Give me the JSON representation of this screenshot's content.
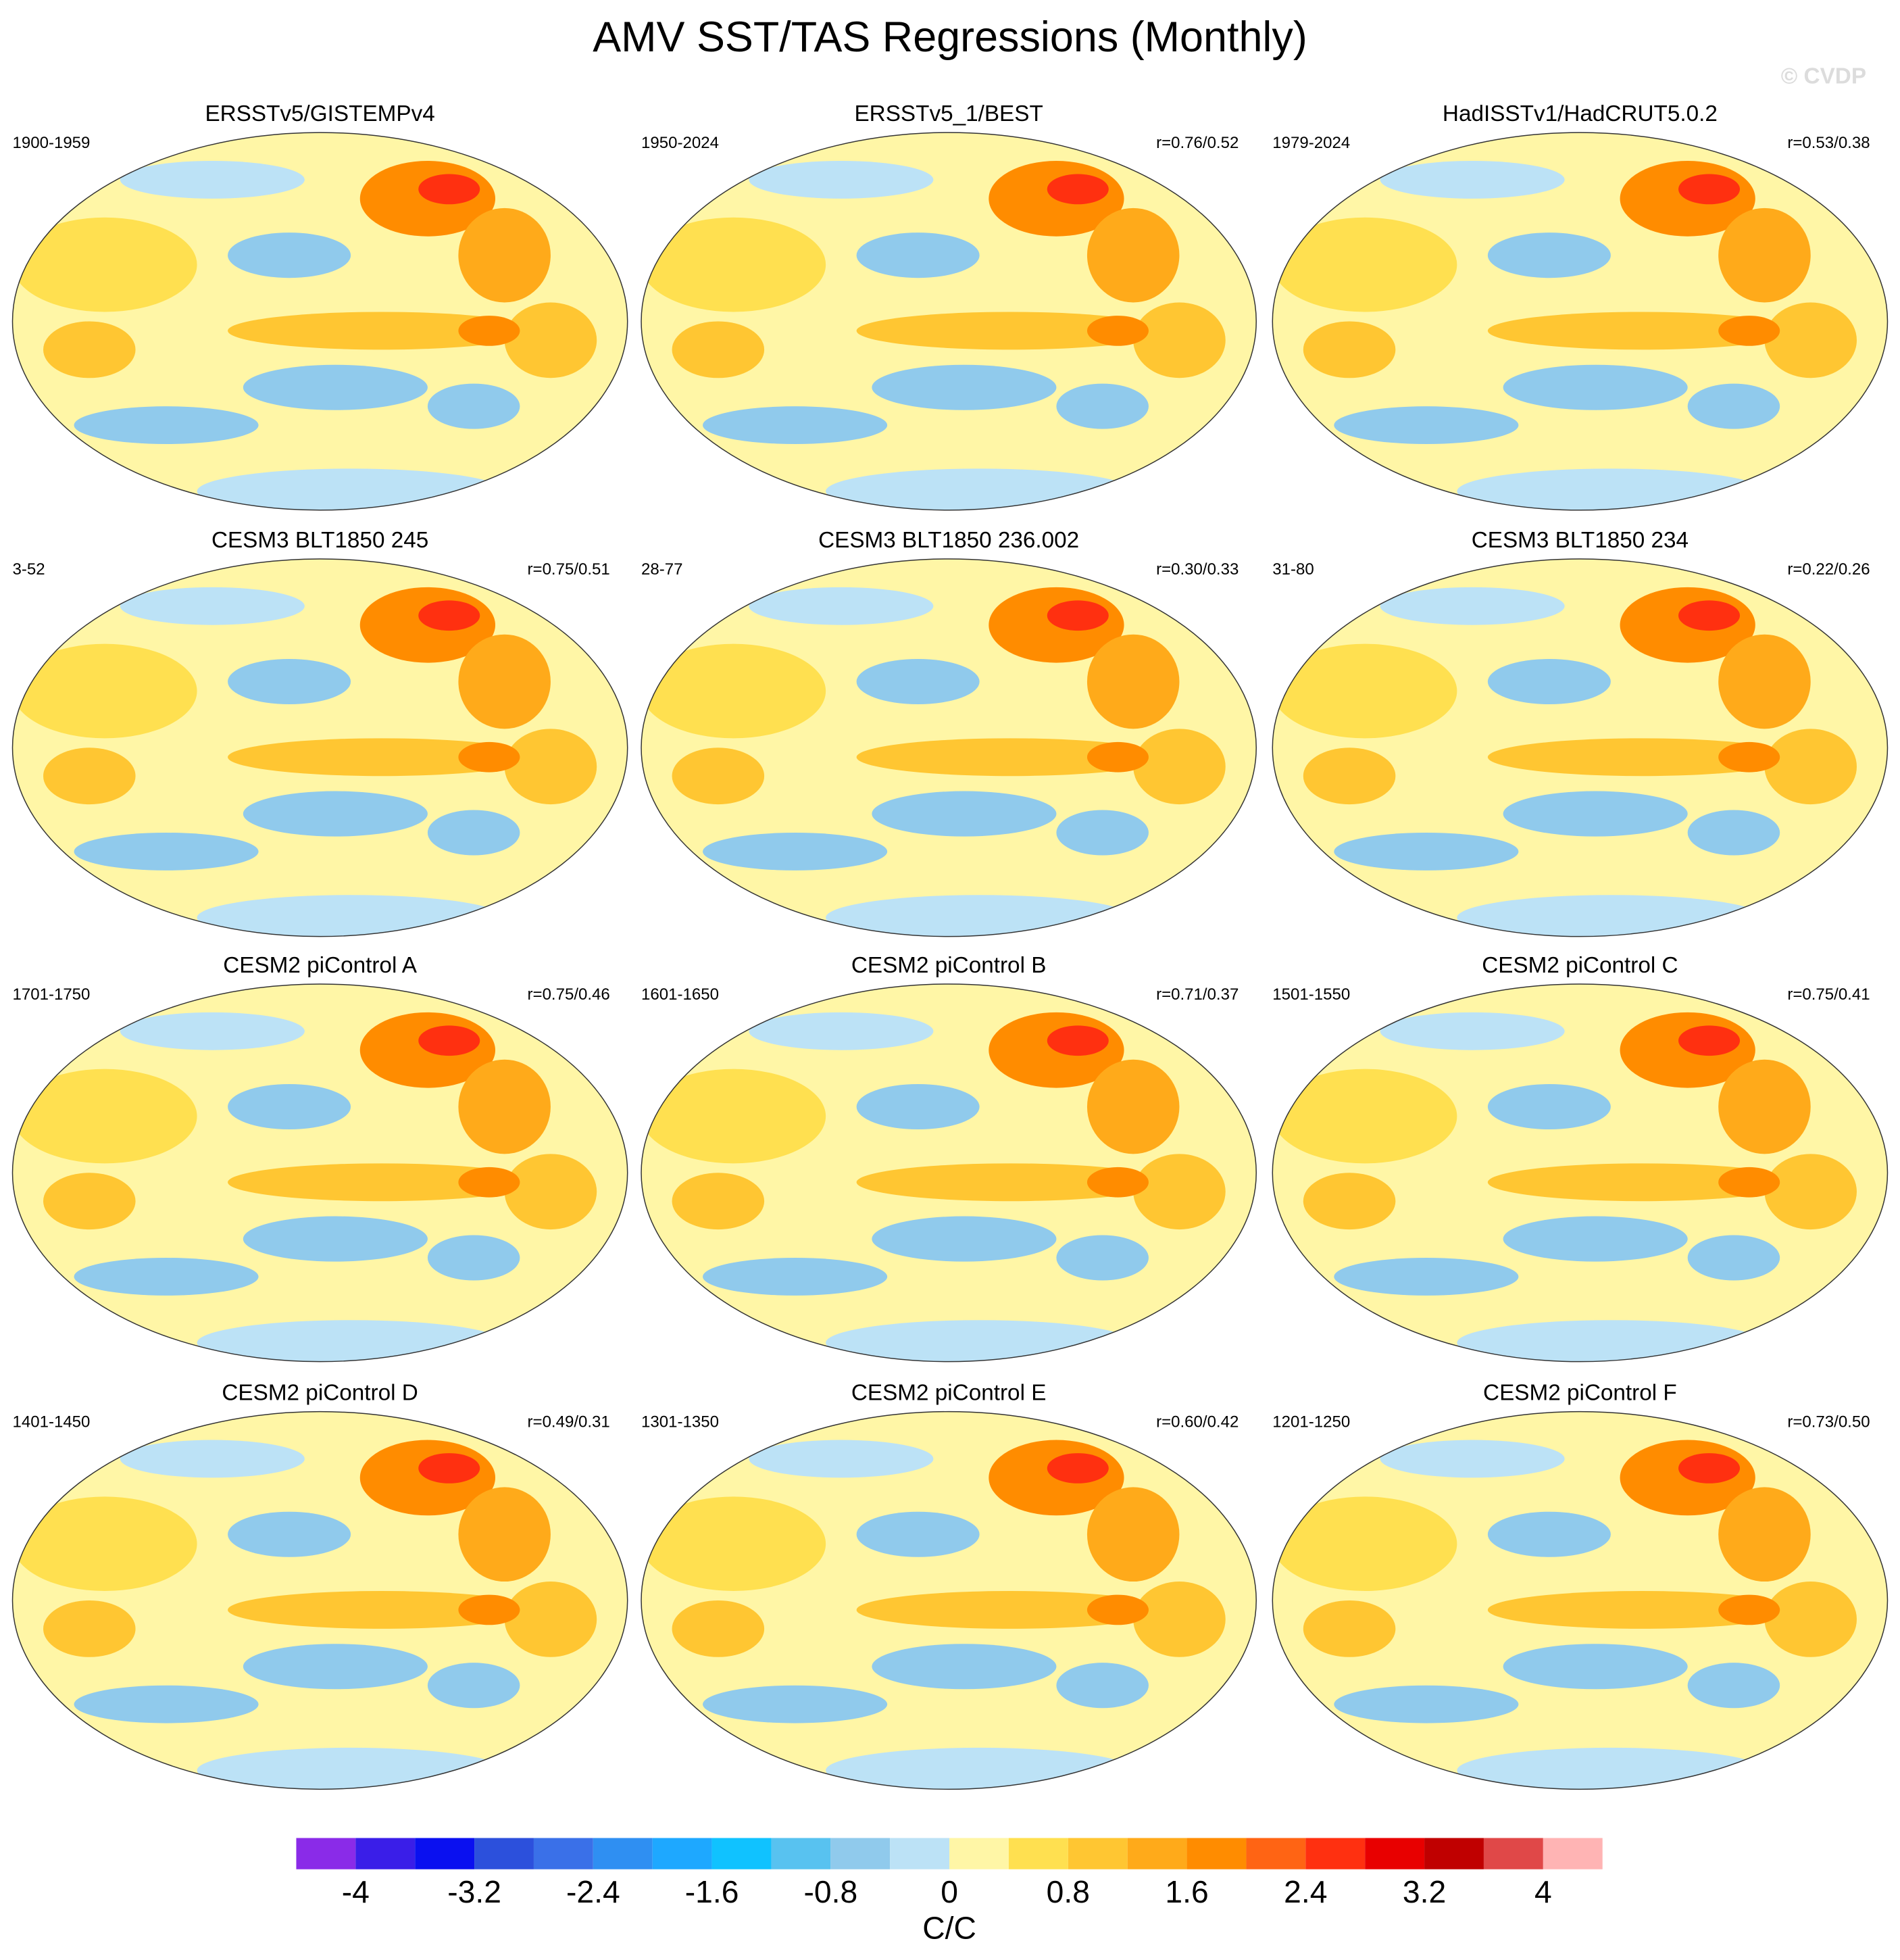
{
  "title": "AMV SST/TAS Regressions (Monthly)",
  "copyright": "© CVDP",
  "panels": [
    {
      "title": "ERSSTv5/GISTEMPv4",
      "period": "1900-1959"
    },
    {
      "title": "ERSSTv5_1/BEST",
      "period": "1950-2024",
      "correlation": "r=0.76/0.52"
    },
    {
      "title": "HadISSTv1/HadCRUT5.0.2",
      "period": "1979-2024",
      "correlation": "r=0.53/0.38"
    },
    {
      "title": "CESM3 BLT1850 245",
      "period": "3-52",
      "correlation": "r=0.75/0.51"
    },
    {
      "title": "CESM3 BLT1850 236.002",
      "period": "28-77",
      "correlation": "r=0.30/0.33"
    },
    {
      "title": "CESM3 BLT1850 234",
      "period": "31-80",
      "correlation": "r=0.22/0.26"
    },
    {
      "title": "CESM2 piControl A",
      "period": "1701-1750",
      "correlation": "r=0.75/0.46"
    },
    {
      "title": "CESM2 piControl B",
      "period": "1601-1650",
      "correlation": "r=0.71/0.37"
    },
    {
      "title": "CESM2 piControl C",
      "period": "1501-1550",
      "correlation": "r=0.75/0.41"
    },
    {
      "title": "CESM2 piControl D",
      "period": "1401-1450",
      "correlation": "r=0.49/0.31"
    },
    {
      "title": "CESM2 piControl E",
      "period": "1301-1350",
      "correlation": "r=0.60/0.42"
    },
    {
      "title": "CESM2 piControl F",
      "period": "1201-1250",
      "correlation": "r=0.73/0.50"
    }
  ],
  "colorbar": {
    "label": "C/C",
    "levels": [
      -4,
      -3.6,
      -3.2,
      -2.8,
      -2.4,
      -2,
      -1.6,
      -1.2,
      -0.8,
      -0.4,
      0,
      0.4,
      0.8,
      1.2,
      1.6,
      2,
      2.4,
      2.8,
      3.2,
      3.6,
      4
    ],
    "ticks": [
      -4,
      -3.2,
      -2.4,
      -1.6,
      -0.8,
      0,
      0.8,
      1.6,
      2.4,
      3.2,
      4
    ],
    "colors": [
      "#8a2be8",
      "#3a1ee8",
      "#0a10f0",
      "#2c50dc",
      "#3a70e8",
      "#2f8ff2",
      "#1ea8ff",
      "#10c2ff",
      "#58c2f0",
      "#90caec",
      "#bce2f6",
      "#fff6a6",
      "#ffe050",
      "#ffc632",
      "#ffaa1a",
      "#ff8c00",
      "#ff6414",
      "#ff3010",
      "#e80000",
      "#c00000",
      "#e04848",
      "#ffb4b4"
    ]
  }
}
